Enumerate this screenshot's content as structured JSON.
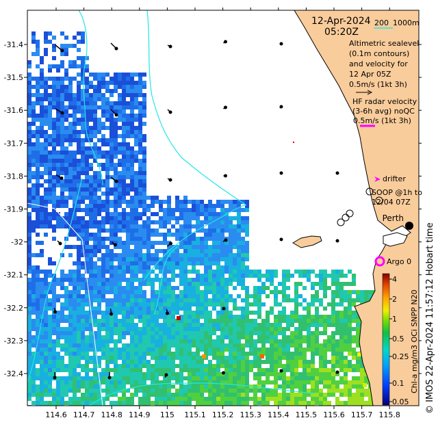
{
  "map": {
    "date": "12-Apr-2024",
    "time": "05:20Z",
    "depth_legend": {
      "c200": "200",
      "c1000": "1000m"
    },
    "altimetry_note": [
      "Altimetric sealevel",
      "(0.1m contours)",
      "and velocity for",
      "12 Apr 05Z",
      "0.5m/s (1kt 3h)"
    ],
    "hf_radar_note": [
      "HF radar velocity",
      "(3-6h avg) noQC",
      "0.5m/s (1kt 3h)"
    ],
    "drifter_label": "drifter",
    "soop_label": [
      "SOOP @1h to",
      "12/04 07Z"
    ],
    "city_label": "Perth",
    "argo_label": "Argo 0",
    "credit": "© IMOS 22-Apr-2024 11:57:12 Hobart time",
    "colorbar": {
      "label": "Chl-a mg/m3 OCi SNPP N20",
      "ticks": [
        "4",
        "2",
        "1",
        "0.5",
        "0.25",
        "0.1",
        "0.05"
      ]
    },
    "x_ticks": [
      "114.6",
      "114.7",
      "114.8",
      "114.9",
      "115",
      "115.1",
      "115.2",
      "115.3",
      "115.4",
      "115.5",
      "115.6",
      "115.7",
      "115.8"
    ],
    "y_ticks": [
      "-31.4",
      "-31.5",
      "-31.6",
      "-31.7",
      "-31.8",
      "-31.9",
      "-32",
      "-32.1",
      "-32.2",
      "-32.3",
      "-32.4"
    ],
    "colors": {
      "land": "#f9cc9b",
      "contour": "#22e6e6",
      "hf": "#ff00ff"
    }
  }
}
